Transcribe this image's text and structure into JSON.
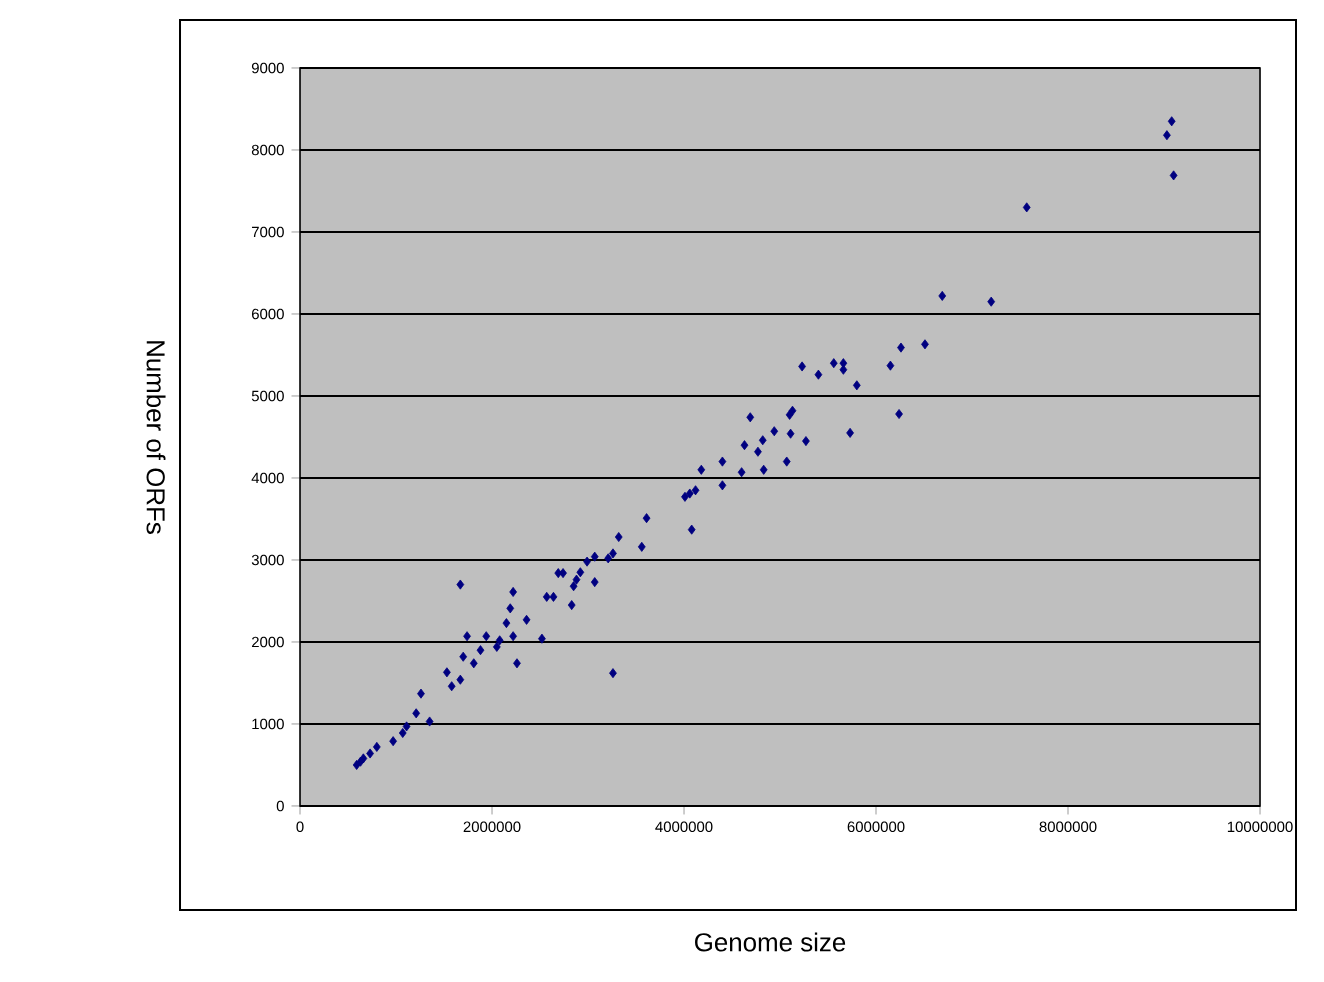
{
  "chart_data": {
    "type": "scatter",
    "xlabel": "Genome size",
    "ylabel": "Number of ORFs",
    "x": [
      9080000,
      9030000,
      9100000,
      7570000,
      6690000,
      7200000,
      6510000,
      6260000,
      6150000,
      5230000,
      5560000,
      5660000,
      5400000,
      5660000,
      5800000,
      6240000,
      5730000,
      5130000,
      5100000,
      4690000,
      4940000,
      5110000,
      4820000,
      4630000,
      5270000,
      4770000,
      5070000,
      4180000,
      4400000,
      4600000,
      4830000,
      4400000,
      4060000,
      4010000,
      4120000,
      3610000,
      4080000,
      3320000,
      3560000,
      3260000,
      3070000,
      2990000,
      3210000,
      2740000,
      2920000,
      2850000,
      3070000,
      2830000,
      3260000,
      2690000,
      2880000,
      1670000,
      2220000,
      2570000,
      2640000,
      2190000,
      2360000,
      2150000,
      1740000,
      1940000,
      2080000,
      2220000,
      2520000,
      1880000,
      2050000,
      2260000,
      1700000,
      1810000,
      1530000,
      1670000,
      1580000,
      1260000,
      1210000,
      1350000,
      1110000,
      1070000,
      970000,
      800000,
      730000,
      660000,
      590000,
      630000
    ],
    "values": [
      8350,
      8180,
      7690,
      7300,
      6220,
      6150,
      5630,
      5590,
      5370,
      5360,
      5400,
      5400,
      5260,
      5320,
      5130,
      4780,
      4550,
      4820,
      4770,
      4740,
      4570,
      4540,
      4460,
      4400,
      4450,
      4320,
      4200,
      4100,
      4200,
      4070,
      4100,
      3910,
      3810,
      3770,
      3850,
      3510,
      3370,
      3280,
      3160,
      3080,
      3040,
      2980,
      3020,
      2840,
      2850,
      2680,
      2730,
      2450,
      1620,
      2840,
      2760,
      2700,
      2610,
      2550,
      2550,
      2410,
      2270,
      2230,
      2070,
      2070,
      2020,
      2070,
      2040,
      1900,
      1940,
      1740,
      1820,
      1740,
      1630,
      1540,
      1460,
      1370,
      1130,
      1030,
      970,
      890,
      790,
      720,
      640,
      580,
      500,
      540
    ],
    "color": "#000080",
    "marker": "diamond",
    "xlim": [
      0,
      10000000
    ],
    "xticks": [
      0,
      2000000,
      4000000,
      6000000,
      8000000,
      10000000
    ],
    "ylim": [
      0,
      9000
    ],
    "yticks": [
      0,
      1000,
      2000,
      3000,
      4000,
      5000,
      6000,
      7000,
      8000,
      9000
    ],
    "grid": "y"
  }
}
